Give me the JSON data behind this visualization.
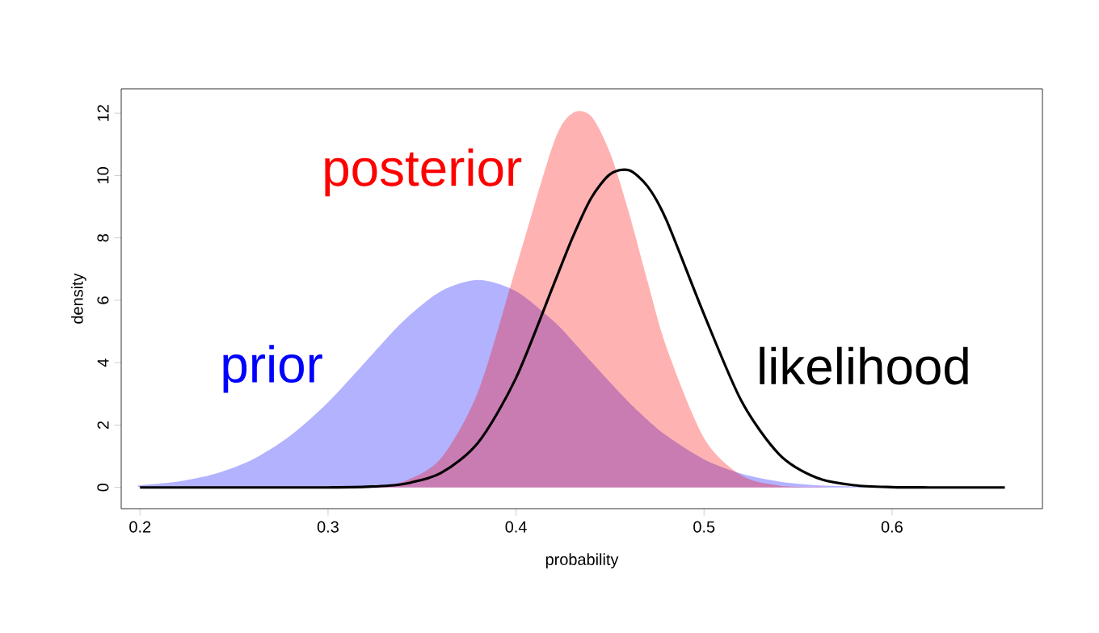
{
  "chart_data": {
    "type": "area",
    "xlabel": "probability",
    "ylabel": "density",
    "x": [
      0.2,
      0.22,
      0.24,
      0.26,
      0.28,
      0.3,
      0.32,
      0.34,
      0.36,
      0.38,
      0.4,
      0.42,
      0.43,
      0.44,
      0.45,
      0.46,
      0.47,
      0.48,
      0.5,
      0.52,
      0.54,
      0.56,
      0.58,
      0.6,
      0.62,
      0.64,
      0.66
    ],
    "series": [
      {
        "name": "prior",
        "color": "#0000ff",
        "values": [
          0.07,
          0.19,
          0.44,
          0.9,
          1.66,
          2.73,
          4.03,
          5.33,
          6.29,
          6.65,
          6.29,
          5.33,
          4.7,
          4.03,
          3.37,
          2.73,
          2.16,
          1.66,
          0.9,
          0.44,
          0.19,
          0.07,
          0.03,
          0.01,
          0,
          0,
          0
        ]
      },
      {
        "name": "posterior",
        "color": "#ff0000",
        "values": [
          0,
          0,
          0,
          0,
          0,
          0,
          0.03,
          0.19,
          0.93,
          3.1,
          7.05,
          11.04,
          12.0,
          11.9,
          10.73,
          8.82,
          6.6,
          4.5,
          1.58,
          0.38,
          0.06,
          0.01,
          0,
          0,
          0,
          0,
          0
        ]
      },
      {
        "name": "likelihood",
        "type": "line",
        "color": "#000000",
        "values": [
          0,
          0,
          0,
          0,
          0,
          0,
          0.02,
          0.11,
          0.46,
          1.45,
          3.51,
          6.5,
          8.0,
          9.28,
          10.04,
          10.17,
          9.65,
          8.57,
          5.55,
          2.76,
          1.06,
          0.31,
          0.07,
          0.01,
          0,
          0,
          0
        ]
      }
    ],
    "xlim": [
      0.19,
      0.68
    ],
    "ylim": [
      -0.68,
      12.78
    ],
    "xticks": [
      0.2,
      0.3,
      0.4,
      0.5,
      0.6
    ],
    "yticks": [
      0,
      2,
      4,
      6,
      8,
      10,
      12
    ],
    "grid": false,
    "legend": false
  }
}
